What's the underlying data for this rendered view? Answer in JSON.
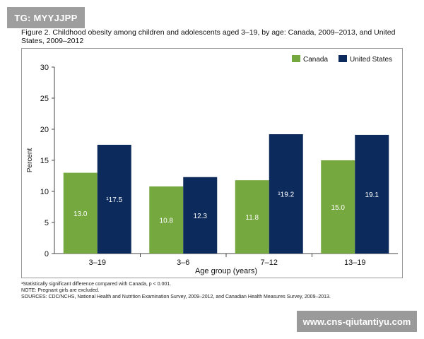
{
  "watermarks": {
    "top_left": "TG: MYYJJPP",
    "bottom_right": "www.cns-qiutantiyu.com"
  },
  "figure": {
    "title": "Figure 2. Childhood obesity among children and adolescents aged 3–19, by age: Canada, 2009–2013, and United States, 2009–2012"
  },
  "footnotes": {
    "significance": "¹Statistically significant difference compared with Canada, p < 0.001.",
    "note": "NOTE: Pregnant girls are excluded.",
    "sources": "SOURCES: CDC/NCHS, National Health and Nutrition Examination Survey, 2009–2012, and Canadian Health Measures Survey, 2009–2013."
  },
  "chart_data": {
    "type": "bar",
    "categories": [
      "3–19",
      "3–6",
      "7–12",
      "13–19"
    ],
    "series": [
      {
        "name": "Canada",
        "color": "#76a840",
        "values": [
          13.0,
          10.8,
          11.8,
          15.0
        ],
        "labels": [
          "13.0",
          "10.8",
          "11.8",
          "15.0"
        ]
      },
      {
        "name": "United States",
        "color": "#0d2a5c",
        "values": [
          17.5,
          12.3,
          19.2,
          19.1
        ],
        "labels": [
          "¹17.5",
          "12.3",
          "¹19.2",
          "19.1"
        ]
      }
    ],
    "xlabel": "Age group (years)",
    "ylabel": "Percent",
    "ylim": [
      0,
      30
    ],
    "yticks": [
      0,
      5,
      10,
      15,
      20,
      25,
      30
    ],
    "legend_position": "top-right",
    "grid": false
  }
}
